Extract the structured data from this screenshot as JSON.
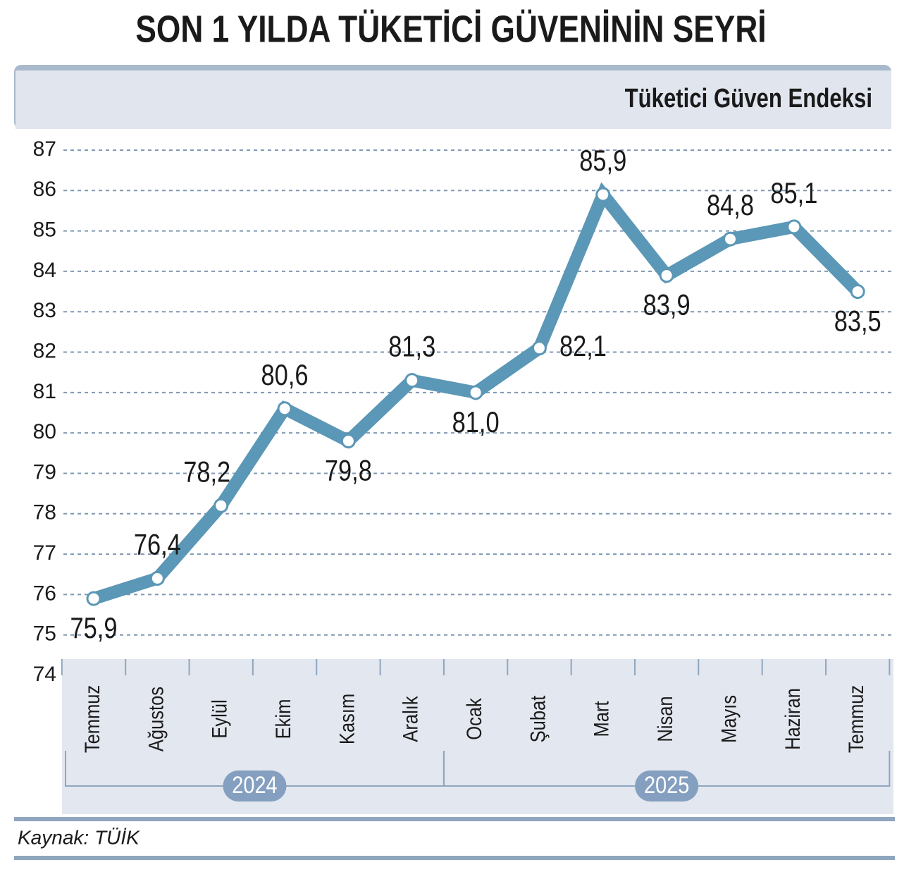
{
  "chart_data": {
    "type": "line",
    "title": "SON 1 YILDA TÜKETİCİ GÜVENİNİN SEYRİ",
    "subtitle": "Tüketici Güven Endeksi",
    "categories": [
      "Temmuz",
      "Ağustos",
      "Eylül",
      "Ekim",
      "Kasım",
      "Aralık",
      "Ocak",
      "Şubat",
      "Mart",
      "Nisan",
      "Mayıs",
      "Haziran",
      "Temmuz"
    ],
    "x_groups": [
      {
        "label": "2024",
        "span": 6
      },
      {
        "label": "2025",
        "span": 7
      }
    ],
    "series": [
      {
        "name": "Tüketici Güven Endeksi",
        "color": "#5b97b6",
        "values": [
          75.9,
          76.4,
          78.2,
          80.6,
          79.8,
          81.3,
          81.0,
          82.1,
          85.9,
          83.9,
          84.8,
          85.1,
          83.5
        ],
        "value_labels": [
          "75,9",
          "76,4",
          "78,2",
          "80,6",
          "79,8",
          "81,3",
          "81,0",
          "82,1",
          "85,9",
          "83,9",
          "84,8",
          "85,1",
          "83,5"
        ]
      }
    ],
    "ylim": [
      74,
      87
    ],
    "yticks": [
      74,
      75,
      76,
      77,
      78,
      79,
      80,
      81,
      82,
      83,
      84,
      85,
      86,
      87
    ],
    "grid": true,
    "source": "Kaynak: TÜİK"
  }
}
